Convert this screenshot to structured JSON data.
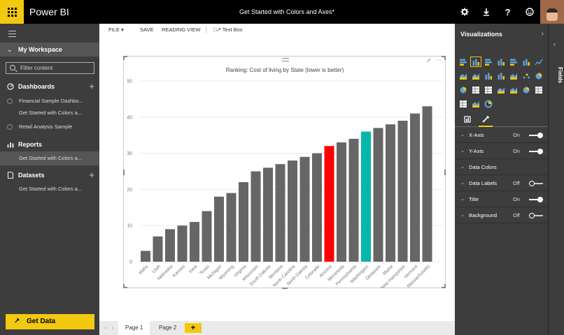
{
  "app": {
    "name": "Power BI",
    "document_title": "Get Started with Colors and Axes*",
    "top_icons": [
      "gear-icon",
      "download-icon",
      "help-icon",
      "smiley-icon"
    ]
  },
  "nav": {
    "workspace": "My Workspace",
    "filter_placeholder": "Filter content",
    "dashboards": {
      "label": "Dashboards",
      "items": [
        "Financial Sample Dashbo...",
        "Get Started with Colors a...",
        "Retail Analysis Sample"
      ]
    },
    "reports": {
      "label": "Reports",
      "items": [
        "Get Started with Colors a..."
      ]
    },
    "datasets": {
      "label": "Datasets",
      "items": [
        "Get Started with Colors a..."
      ]
    },
    "get_data": "Get Data"
  },
  "toolbar": {
    "file": "FILE",
    "save": "SAVE",
    "reading_view": "READING VIEW",
    "text_box": "Text Box"
  },
  "pages": {
    "tabs": [
      "Page 1",
      "Page 2"
    ],
    "active": 0,
    "add": "+"
  },
  "visualizations": {
    "title": "Visualizations",
    "sections": [
      {
        "label": "X-Axis",
        "value": "On",
        "toggle": true,
        "on": true
      },
      {
        "label": "Y-Axis",
        "value": "On",
        "toggle": true,
        "on": true
      },
      {
        "label": "Data Colors",
        "value": "",
        "toggle": false,
        "on": false
      },
      {
        "label": "Data Labels",
        "value": "Off",
        "toggle": true,
        "on": false
      },
      {
        "label": "Title",
        "value": "On",
        "toggle": true,
        "on": true
      },
      {
        "label": "Background",
        "value": "Off",
        "toggle": true,
        "on": false
      }
    ]
  },
  "fields_label": "Fields",
  "chart_data": {
    "type": "bar",
    "title": "Ranking: Cost of living by State (lower is better)",
    "xlabel": "",
    "ylabel": "",
    "ylim": [
      0,
      50
    ],
    "yticks": [
      0,
      10,
      20,
      30,
      40,
      50
    ],
    "grid": true,
    "categories": [
      "Idaho",
      "Utah",
      "Nebraska",
      "Kansas",
      "Iowa",
      "Texas",
      "Michigan",
      "Wyoming",
      "Virginia",
      "Wisconsin",
      "South Dakota",
      "Montana",
      "North Carolina",
      "North Dakota",
      "Colorado",
      "Arizona",
      "Minnesota",
      "Pennsylvania",
      "Washington",
      "Delaware",
      "Maine",
      "New Hampshire",
      "Vermont",
      "Massachusetts"
    ],
    "values": [
      3,
      7,
      9,
      10,
      11,
      14,
      18,
      19,
      22,
      25,
      26,
      27,
      28,
      29,
      30,
      32,
      33,
      34,
      36,
      37,
      38,
      39,
      41,
      43
    ],
    "colors": [
      "#666666",
      "#666666",
      "#666666",
      "#666666",
      "#666666",
      "#666666",
      "#666666",
      "#666666",
      "#666666",
      "#666666",
      "#666666",
      "#666666",
      "#666666",
      "#666666",
      "#666666",
      "#ff0000",
      "#666666",
      "#666666",
      "#01b8aa",
      "#666666",
      "#666666",
      "#666666",
      "#666666",
      "#666666"
    ]
  }
}
